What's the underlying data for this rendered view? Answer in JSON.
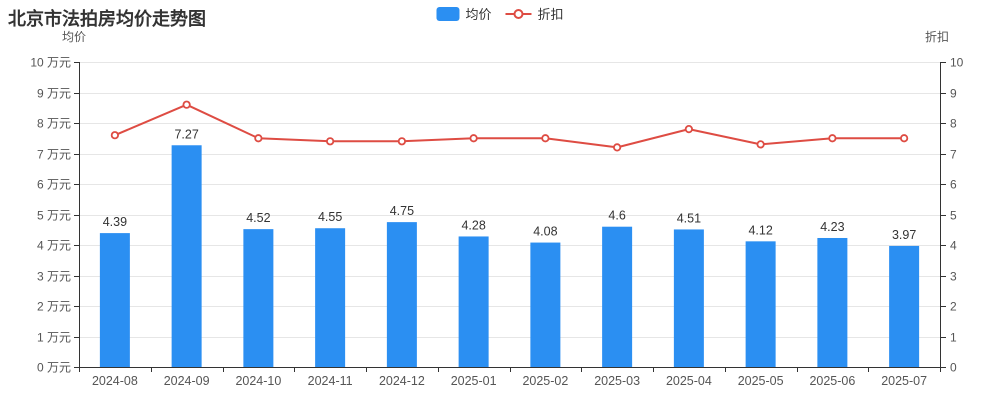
{
  "chart_data": {
    "type": "bar",
    "title": "北京市法拍房均价走势图",
    "categories": [
      "2024-08",
      "2024-09",
      "2024-10",
      "2024-11",
      "2024-12",
      "2025-01",
      "2025-02",
      "2025-03",
      "2025-04",
      "2025-05",
      "2025-06",
      "2025-07"
    ],
    "series": [
      {
        "name": "均价",
        "type": "bar",
        "axis": "left",
        "color": "#2b8ff2",
        "values": [
          4.39,
          7.27,
          4.52,
          4.55,
          4.75,
          4.28,
          4.08,
          4.6,
          4.51,
          4.12,
          4.23,
          3.97
        ],
        "labels": [
          "4.39",
          "7.27",
          "4.52",
          "4.55",
          "4.75",
          "4.28",
          "4.08",
          "4.6",
          "4.51",
          "4.12",
          "4.23",
          "3.97"
        ]
      },
      {
        "name": "折扣",
        "type": "line",
        "axis": "right",
        "color": "#de4c43",
        "point_fill": "#ffffff",
        "values": [
          7.6,
          8.6,
          7.5,
          7.4,
          7.4,
          7.5,
          7.5,
          7.2,
          7.8,
          7.3,
          7.5,
          7.5
        ]
      }
    ],
    "left_axis": {
      "name": "均价",
      "min": 0,
      "max": 10,
      "unit": "万元",
      "ticks": [
        "0 万元",
        "1 万元",
        "2 万元",
        "3 万元",
        "4 万元",
        "5 万元",
        "6 万元",
        "7 万元",
        "8 万元",
        "9 万元",
        "10 万元"
      ]
    },
    "right_axis": {
      "name": "折扣",
      "min": 0,
      "max": 10,
      "ticks": [
        "0",
        "1",
        "2",
        "3",
        "4",
        "5",
        "6",
        "7",
        "8",
        "9",
        "10"
      ]
    },
    "grid": true,
    "legend_position": "top-center",
    "colors": {
      "grid": "#e6e6e6",
      "axis": "#333333",
      "tick_label": "#555555",
      "value_label": "#333333",
      "title": "#333333",
      "background": "#ffffff"
    }
  }
}
